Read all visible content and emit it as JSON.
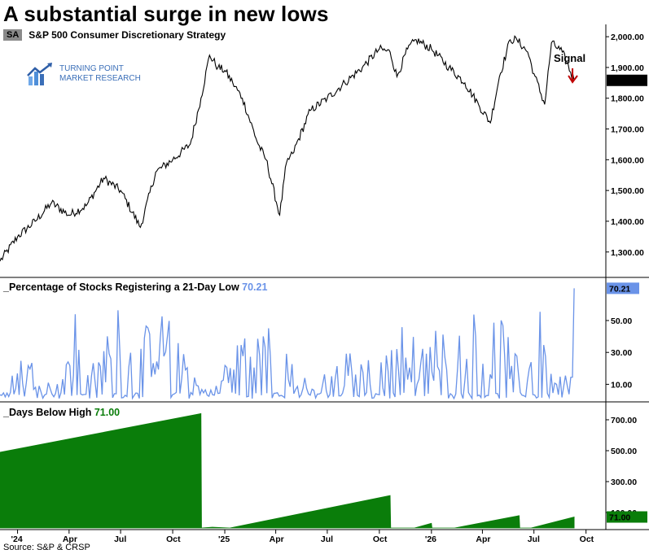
{
  "title": "A substantial surge in new lows",
  "ticker": {
    "symbol": "SA",
    "name": "S&P 500 Consumer Discretionary  Strategy"
  },
  "logo": {
    "line1": "TURNING POINT",
    "line2": "MARKET RESEARCH",
    "icon": "bar-chart-arrow-icon"
  },
  "source": "Source: S&P & CRSP",
  "colors": {
    "price": "#000000",
    "pct": "#6a93e8",
    "days": "#0a7d0a",
    "signal": "#c00000"
  },
  "chart_data": [
    {
      "type": "line",
      "name": "price",
      "ylim": [
        1220,
        2040
      ],
      "yticks": [
        2000,
        1900,
        1800,
        1700,
        1600,
        1500,
        1400,
        1300
      ],
      "ytick_labels": [
        "2,000.00",
        "1,900.00",
        "1,800.00",
        "1,700.00",
        "1,600.00",
        "1,500.00",
        "1,400.00",
        "1,300.00"
      ],
      "last_value": 1858.1,
      "last_label": "1,858.10",
      "annotation": "Signal",
      "x": [
        "2023-12-01",
        "2024-01-01",
        "2024-02-01",
        "2024-03-01",
        "2024-04-01",
        "2024-05-01",
        "2024-06-01",
        "2024-07-01",
        "2024-08-05",
        "2024-09-01",
        "2024-10-01",
        "2024-11-01",
        "2024-11-20",
        "2024-12-05",
        "2024-12-20",
        "2025-01-01",
        "2025-01-15",
        "2025-02-01",
        "2025-03-01",
        "2025-03-15",
        "2025-04-08",
        "2025-04-20",
        "2025-05-01",
        "2025-06-01",
        "2025-07-01",
        "2025-08-01",
        "2025-09-01",
        "2025-10-01",
        "2025-10-20",
        "2025-11-01",
        "2025-11-20",
        "2025-12-05",
        "2026-01-01",
        "2026-02-01",
        "2026-03-01",
        "2026-03-25",
        "2026-04-15",
        "2026-05-01",
        "2026-05-20",
        "2026-06-01",
        "2026-06-20",
        "2026-07-01",
        "2026-07-20",
        "2026-08-01",
        "2026-08-20",
        "2026-09-10"
      ],
      "values": [
        1270,
        1350,
        1400,
        1460,
        1420,
        1450,
        1540,
        1500,
        1380,
        1560,
        1600,
        1650,
        1800,
        1940,
        1900,
        1890,
        1850,
        1800,
        1650,
        1600,
        1420,
        1590,
        1620,
        1760,
        1800,
        1850,
        1900,
        1960,
        1950,
        1870,
        1960,
        1990,
        1960,
        1900,
        1850,
        1780,
        1720,
        1870,
        1990,
        1990,
        1950,
        1880,
        1780,
        1980,
        1950,
        1858.1
      ]
    },
    {
      "type": "area",
      "name": "_Percentage of Stocks Registering a 21-Day Low",
      "title": "_Percentage of Stocks Registering a 21-Day Low",
      "last_value": 70.21,
      "last_label": "70.21",
      "ylim": [
        0,
        75
      ],
      "yticks": [
        50,
        30,
        10
      ],
      "ytick_labels": [
        "50.00",
        "30.00",
        "10.00"
      ],
      "x": [
        "2023-12-01",
        "2024-01-10",
        "2024-03-05",
        "2024-04-15",
        "2024-05-20",
        "2024-06-20",
        "2024-07-25",
        "2024-08-15",
        "2024-10-01",
        "2024-11-15",
        "2024-12-20",
        "2025-01-20",
        "2025-02-25",
        "2025-03-10",
        "2025-04-04",
        "2025-04-20",
        "2025-06-01",
        "2025-07-15",
        "2025-08-20",
        "2025-10-01",
        "2025-11-10",
        "2025-12-10",
        "2026-01-15",
        "2026-03-01",
        "2026-03-20",
        "2026-04-05",
        "2026-05-01",
        "2026-06-10",
        "2026-07-15",
        "2026-08-10",
        "2026-09-01",
        "2026-09-10"
      ],
      "values": [
        5,
        30,
        15,
        62,
        20,
        65,
        38,
        48,
        60,
        12,
        10,
        52,
        40,
        58,
        70,
        30,
        10,
        24,
        38,
        25,
        62,
        30,
        50,
        48,
        62,
        40,
        55,
        28,
        60,
        33,
        15,
        70.21
      ]
    },
    {
      "type": "area",
      "name": "_Days Below High",
      "title": "_Days Below High",
      "last_value": 71.0,
      "last_label": "71.00",
      "ylim": [
        0,
        800
      ],
      "yticks": [
        700,
        500,
        300,
        100
      ],
      "ytick_labels": [
        "700.00",
        "500.00",
        "300.00",
        "100.00"
      ],
      "x": [
        "2023-12-01",
        "2024-11-20",
        "2024-11-21",
        "2024-12-10",
        "2025-01-10",
        "2025-10-20",
        "2025-10-21",
        "2025-12-01",
        "2025-12-02",
        "2026-01-01",
        "2026-01-02",
        "2026-02-10",
        "2026-02-11",
        "2026-06-05",
        "2026-06-06",
        "2026-06-25",
        "2026-06-26",
        "2026-09-10"
      ],
      "values": [
        490,
        740,
        0,
        5,
        0,
        210,
        0,
        0,
        0,
        30,
        0,
        0,
        0,
        80,
        0,
        0,
        0,
        71
      ]
    }
  ],
  "x_axis": {
    "ticks": [
      "'24",
      "Apr",
      "Jul",
      "Oct",
      "'25",
      "Apr",
      "Jul",
      "Oct",
      "'26",
      "Apr",
      "Jul",
      "Oct"
    ],
    "tick_dates": [
      "2024-01-01",
      "2024-04-01",
      "2024-07-01",
      "2024-10-01",
      "2025-01-01",
      "2025-04-01",
      "2025-07-01",
      "2025-10-01",
      "2026-01-01",
      "2026-04-01",
      "2026-07-01",
      "2026-10-01"
    ]
  }
}
